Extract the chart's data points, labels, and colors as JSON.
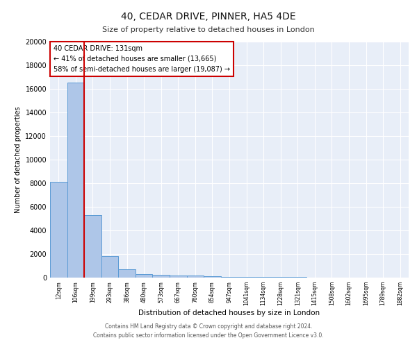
{
  "title1": "40, CEDAR DRIVE, PINNER, HA5 4DE",
  "title2": "Size of property relative to detached houses in London",
  "xlabel": "Distribution of detached houses by size in London",
  "ylabel": "Number of detached properties",
  "bins": [
    "12sqm",
    "106sqm",
    "199sqm",
    "293sqm",
    "386sqm",
    "480sqm",
    "573sqm",
    "667sqm",
    "760sqm",
    "854sqm",
    "947sqm",
    "1041sqm",
    "1134sqm",
    "1228sqm",
    "1321sqm",
    "1415sqm",
    "1508sqm",
    "1602sqm",
    "1695sqm",
    "1789sqm",
    "1882sqm"
  ],
  "values": [
    8100,
    16500,
    5300,
    1850,
    700,
    300,
    230,
    200,
    170,
    100,
    80,
    60,
    50,
    40,
    30,
    25,
    20,
    15,
    12,
    10,
    8
  ],
  "bar_color": "#aec6e8",
  "bar_edge_color": "#5b9bd5",
  "background_color": "#e8eef8",
  "grid_color": "#ffffff",
  "vline_color": "#cc0000",
  "annotation_title": "40 CEDAR DRIVE: 131sqm",
  "annotation_line1": "← 41% of detached houses are smaller (13,665)",
  "annotation_line2": "58% of semi-detached houses are larger (19,087) →",
  "annotation_box_color": "#ffffff",
  "annotation_box_edge": "#cc0000",
  "footer1": "Contains HM Land Registry data © Crown copyright and database right 2024.",
  "footer2": "Contains public sector information licensed under the Open Government Licence v3.0.",
  "ylim": [
    0,
    20000
  ],
  "yticks": [
    0,
    2000,
    4000,
    6000,
    8000,
    10000,
    12000,
    14000,
    16000,
    18000,
    20000
  ]
}
